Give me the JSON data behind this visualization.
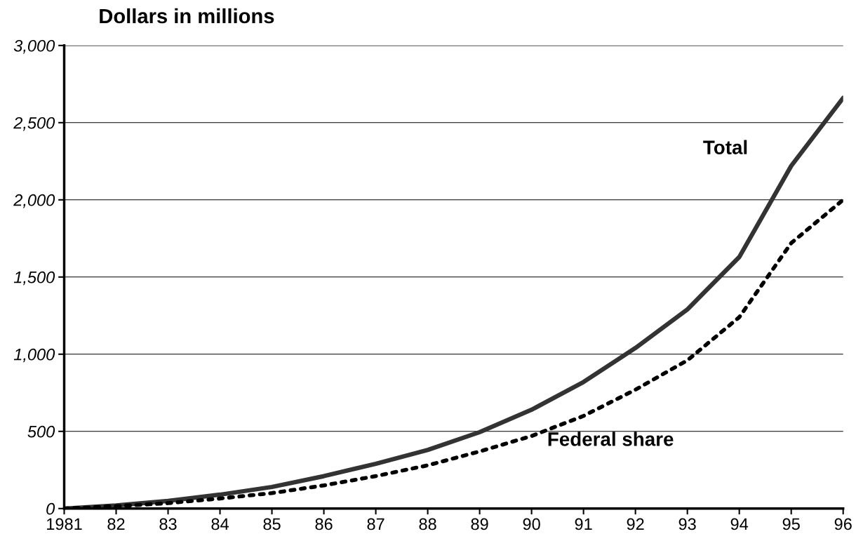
{
  "chart_data": {
    "type": "line",
    "ylabel": "Dollars in millions",
    "categories": [
      "1981",
      "82",
      "83",
      "84",
      "85",
      "86",
      "87",
      "88",
      "89",
      "90",
      "91",
      "92",
      "93",
      "94",
      "95",
      "96"
    ],
    "series": [
      {
        "name": "Total",
        "color": "#333333",
        "line_style": "solid",
        "values": [
          0,
          20,
          50,
          90,
          140,
          210,
          290,
          380,
          495,
          640,
          820,
          1040,
          1290,
          1630,
          2220,
          2660
        ]
      },
      {
        "name": "Federal share",
        "color": "#000000",
        "line_style": "dotted",
        "values": [
          0,
          15,
          35,
          65,
          100,
          150,
          210,
          280,
          370,
          470,
          600,
          770,
          960,
          1240,
          1720,
          2000
        ]
      }
    ],
    "ylim": [
      0,
      3000
    ],
    "yticks": [
      {
        "value": 0,
        "label": "0"
      },
      {
        "value": 500,
        "label": "500"
      },
      {
        "value": 1000,
        "label": "1,000"
      },
      {
        "value": 1500,
        "label": "1,500"
      },
      {
        "value": 2000,
        "label": "2,000"
      },
      {
        "value": 2500,
        "label": "2,500"
      },
      {
        "value": 3000,
        "label": "3,000"
      }
    ],
    "grid": "y",
    "legend": false,
    "marker": "none"
  }
}
